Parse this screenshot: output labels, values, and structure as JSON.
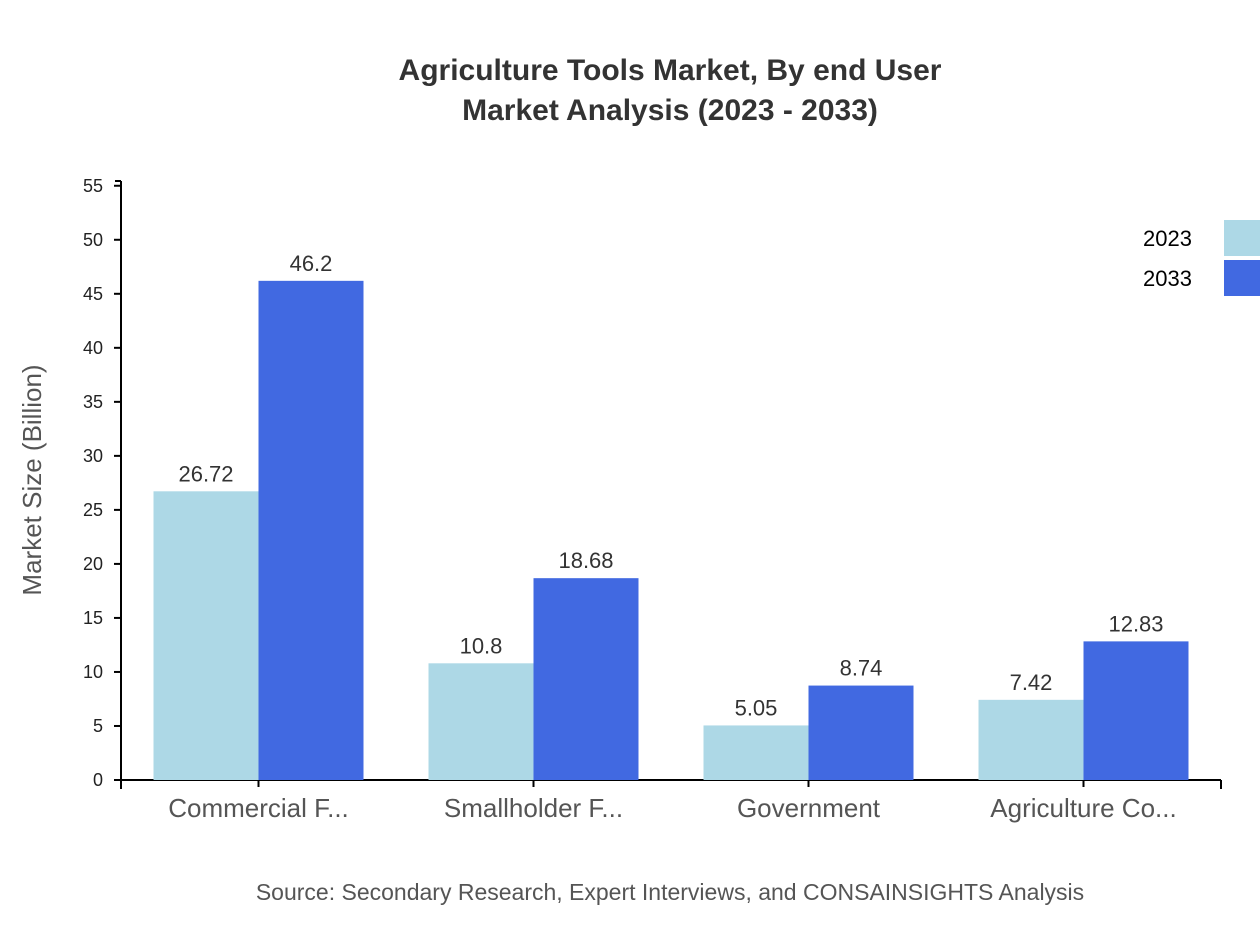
{
  "chart_data": {
    "type": "bar",
    "title": [
      "Agriculture Tools Market, By end User",
      "Market Analysis (2023 - 2033)"
    ],
    "ylabel": "Market Size (Billion)",
    "xlabel": "",
    "categories": [
      "Commercial F...",
      "Smallholder F...",
      "Government",
      "Agriculture Co..."
    ],
    "series": [
      {
        "name": "2023",
        "color": "#add8e6",
        "values": [
          26.72,
          10.8,
          5.05,
          7.42
        ]
      },
      {
        "name": "2033",
        "color": "#4169e1",
        "values": [
          46.2,
          18.68,
          8.74,
          12.83
        ]
      }
    ],
    "ylim": [
      0,
      55.44
    ],
    "yticks": [
      0,
      5,
      10,
      15,
      20,
      25,
      30,
      35,
      40,
      45,
      50,
      55
    ],
    "grid": false,
    "legend_position": "top-right",
    "source": "Source: Secondary Research, Expert Interviews, and CONSAINSIGHTS Analysis"
  }
}
